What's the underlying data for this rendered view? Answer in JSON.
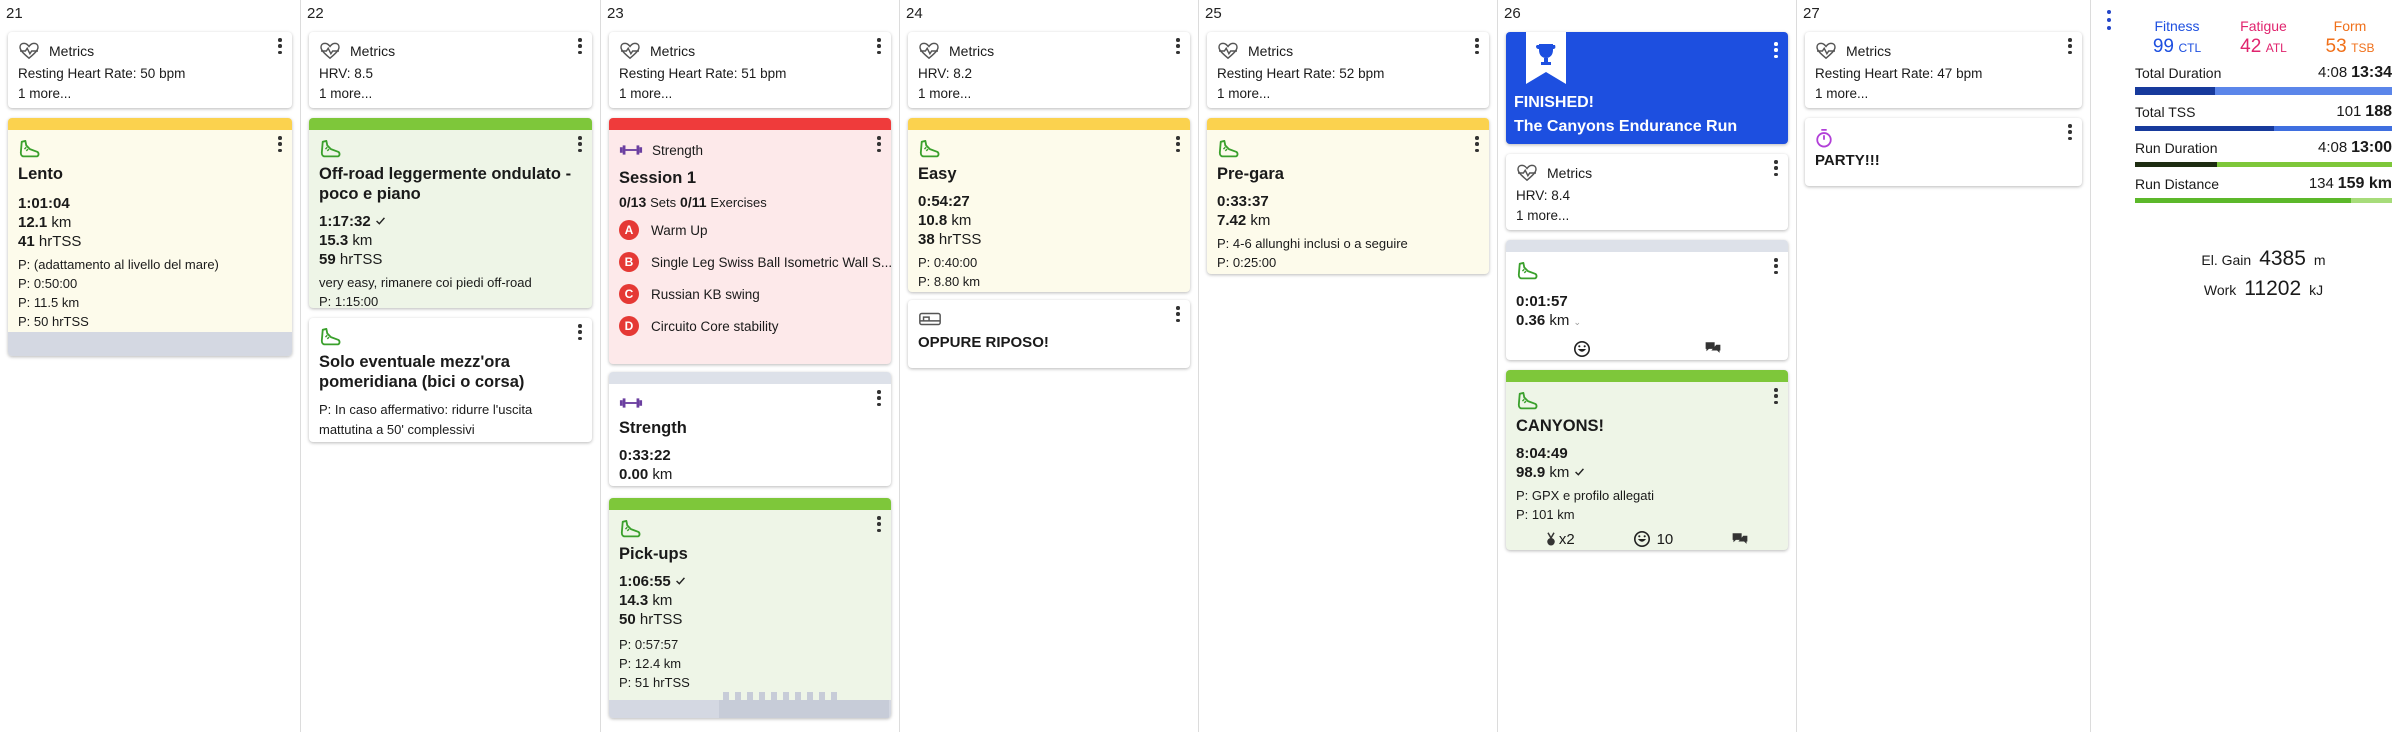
{
  "days": [
    {
      "num": "21"
    },
    {
      "num": "22"
    },
    {
      "num": "23"
    },
    {
      "num": "24"
    },
    {
      "num": "25"
    },
    {
      "num": "26"
    },
    {
      "num": "27"
    }
  ],
  "metrics_label": "Metrics",
  "more_label": "1 more...",
  "metrics": {
    "d21": "Resting Heart Rate: 50 bpm",
    "d22": "HRV: 8.5",
    "d23": "Resting Heart Rate: 51 bpm",
    "d24": "HRV: 8.2",
    "d25": "Resting Heart Rate: 52 bpm",
    "d26": "HRV: 8.4",
    "d27": "Resting Heart Rate: 47 bpm"
  },
  "cards": {
    "lento": {
      "title": "Lento",
      "duration": "1:01:04",
      "distance": "12.1",
      "dist_unit": "km",
      "tss": "41",
      "tss_unit": "hrTSS",
      "note": "P: (adattamento al livello del mare)",
      "p1": "P: 0:50:00",
      "p2": "P: 11.5 km",
      "p3": "P: 50 hrTSS"
    },
    "offroad": {
      "title": "Off-road leggermente ondulato - poco e piano",
      "duration": "1:17:32",
      "distance": "15.3",
      "dist_unit": "km",
      "tss": "59",
      "tss_unit": "hrTSS",
      "note": "very easy, rimanere coi piedi off-road",
      "p1": "P: 1:15:00"
    },
    "solo": {
      "title": "Solo eventuale mezz'ora pomeridiana (bici o corsa)",
      "note": "P: In caso affermativo: ridurre l'uscita mattutina a 50' complessivi"
    },
    "strength1": {
      "type_label": "Strength",
      "title": "Session 1",
      "sets_count": "0/13",
      "sets_label": "Sets",
      "ex_count": "0/11",
      "ex_label": "Exercises",
      "exercises": [
        {
          "letter": "A",
          "name": "Warm Up"
        },
        {
          "letter": "B",
          "name": "Single Leg Swiss Ball Isometric Wall S..."
        },
        {
          "letter": "C",
          "name": "Russian KB swing"
        },
        {
          "letter": "D",
          "name": "Circuito Core stability"
        }
      ]
    },
    "strength2": {
      "title": "Strength",
      "duration": "0:33:22",
      "distance": "0.00",
      "dist_unit": "km"
    },
    "pickups": {
      "title": "Pick-ups",
      "duration": "1:06:55",
      "distance": "14.3",
      "dist_unit": "km",
      "tss": "50",
      "tss_unit": "hrTSS",
      "p1": "P: 0:57:57",
      "p2": "P: 12.4 km",
      "p3": "P: 51 hrTSS"
    },
    "easy": {
      "title": "Easy",
      "duration": "0:54:27",
      "distance": "10.8",
      "dist_unit": "km",
      "tss": "38",
      "tss_unit": "hrTSS",
      "p1": "P: 0:40:00",
      "p2": "P: 8.80 km"
    },
    "oppure": {
      "title": "OPPURE RIPOSO!"
    },
    "pregara": {
      "title": "Pre-gara",
      "duration": "0:33:37",
      "distance": "7.42",
      "dist_unit": "km",
      "note": "P: 4-6 allunghi inclusi o a seguire",
      "p1": "P: 0:25:00"
    },
    "finished": {
      "label": "FINISHED!",
      "race": "The Canyons Endurance Run"
    },
    "short": {
      "duration": "0:01:57",
      "distance": "0.36",
      "dist_unit": "km"
    },
    "canyons": {
      "title": "CANYONS!",
      "duration": "8:04:49",
      "distance": "98.9",
      "dist_unit": "km",
      "note": "P: GPX e profilo allegati",
      "p1": "P: 101 km",
      "medals": "x2",
      "smiles": "10"
    },
    "party": {
      "title": "PARTY!!!"
    }
  },
  "summary": {
    "fitness_label": "Fitness",
    "fitness_value": "99",
    "fitness_unit": "CTL",
    "fatigue_label": "Fatigue",
    "fatigue_value": "42",
    "fatigue_unit": "ATL",
    "form_label": "Form",
    "form_value": "53",
    "form_unit": "TSB",
    "rows": [
      {
        "label": "Total Duration",
        "actual": "4:08",
        "planned": "13:34",
        "fill": 0.31
      },
      {
        "label": "Total TSS",
        "actual": "101",
        "planned": "188",
        "fill": 0.54
      },
      {
        "label": "Run Duration",
        "actual": "4:08",
        "planned": "13:00",
        "fill": 0.32
      },
      {
        "label": "Run Distance",
        "actual": "134",
        "planned": "159 km",
        "fill": 0.84
      }
    ],
    "elgain_label": "El. Gain",
    "elgain_value": "4385",
    "elgain_unit": "m",
    "work_label": "Work",
    "work_value": "11202",
    "work_unit": "kJ"
  },
  "colors": {
    "yellow": "#fbd24e",
    "green": "#7ec73a",
    "red": "#ef3b3b",
    "grey": "#dde1e9",
    "blue": "#1d4fe0",
    "fitness": "#1d4fe0",
    "fatigue": "#e0246e",
    "form": "#f0701a"
  }
}
